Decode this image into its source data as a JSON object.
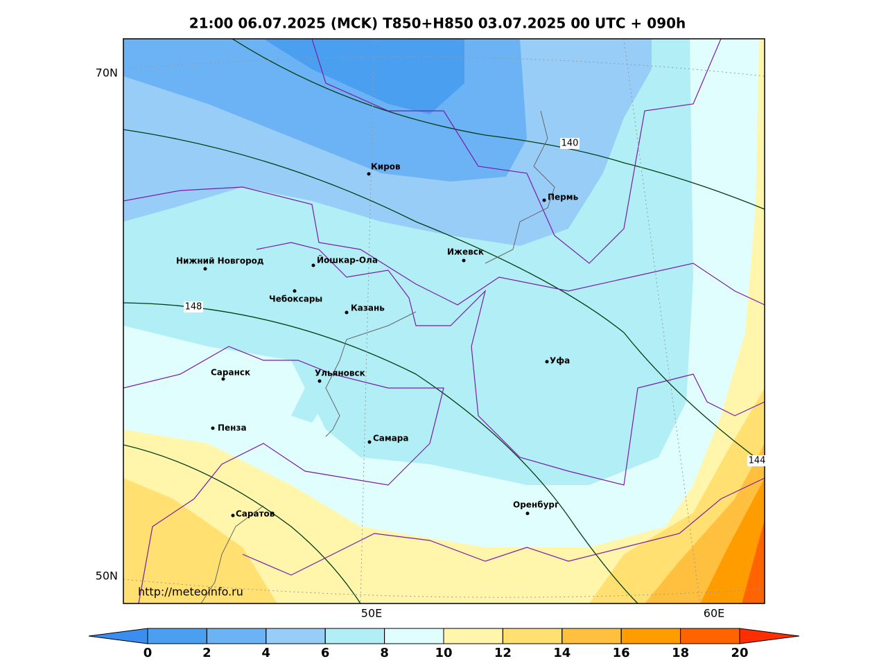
{
  "title": "21:00 06.07.2025 (MCK) T850+H850 03.07.2025 00 UTC + 090h",
  "map": {
    "lat_labels": [
      "70N",
      "50N"
    ],
    "lon_labels": [
      "50E",
      "60E"
    ],
    "contour_labels": [
      "140",
      "148",
      "144"
    ],
    "cities": [
      "Киров",
      "Пермь",
      "Ижевск",
      "Нижний Новгород",
      "Йошкар-Ола",
      "Чебоксары",
      "Казань",
      "Уфа",
      "Саранск",
      "Ульяновск",
      "Пенза",
      "Самара",
      "Оренбург",
      "Саратов"
    ],
    "credit": "http://meteoinfo.ru"
  },
  "colorbar": {
    "ticks": [
      0,
      2,
      4,
      6,
      8,
      10,
      12,
      14,
      16,
      18,
      20
    ],
    "colors": [
      "#4a9ff0",
      "#6cb3f5",
      "#98cdf8",
      "#b2eef6",
      "#e0fefe",
      "#fff6ac",
      "#ffe070",
      "#ffc040",
      "#ff9c00",
      "#ff6400"
    ],
    "under_color": "#3a8ef0",
    "over_color": "#ff2e00"
  }
}
